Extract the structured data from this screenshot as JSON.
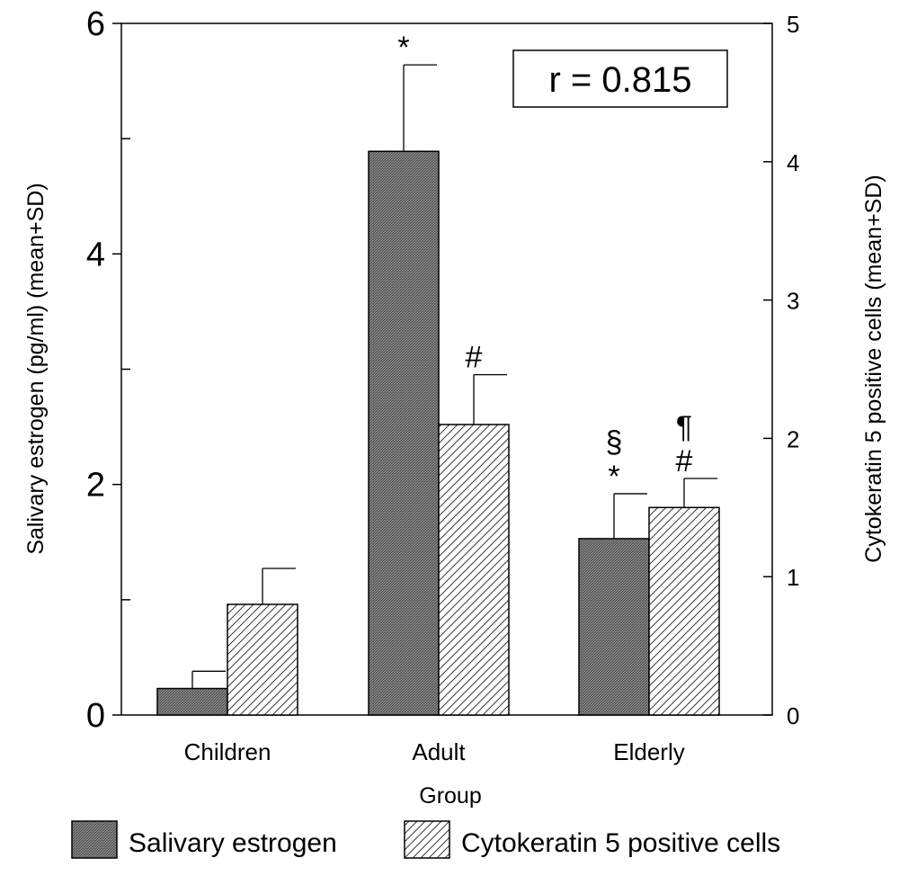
{
  "chart_data": {
    "type": "bar",
    "xlabel": "Group",
    "ylabel_left": "Salivary estrogen (pg/ml) (mean+SD)",
    "ylabel_right": "Cytokeratin 5 positive cells (mean+SD)",
    "ylim_left": [
      0,
      6
    ],
    "ylim_right": [
      0,
      5
    ],
    "yticks_left": [
      "0",
      "2",
      "4",
      "6"
    ],
    "yticks_right": [
      "0",
      "1",
      "2",
      "3",
      "4",
      "5"
    ],
    "categories": [
      "Children",
      "Adult",
      "Elderly"
    ],
    "series": [
      {
        "name": "Salivary estrogen",
        "axis": "left",
        "values": [
          0.23,
          4.89,
          1.53
        ],
        "sd": [
          0.15,
          0.75,
          0.39
        ],
        "annotations": [
          "",
          "*",
          "§\n*"
        ]
      },
      {
        "name": "Cytokeratin 5 positive cells",
        "axis": "right",
        "values": [
          0.8,
          2.1,
          1.5
        ],
        "sd": [
          0.26,
          0.36,
          0.21
        ],
        "annotations": [
          "",
          "#",
          "¶\n#"
        ]
      }
    ],
    "correlation_label": "r = 0.815",
    "legend_position": "bottom"
  }
}
